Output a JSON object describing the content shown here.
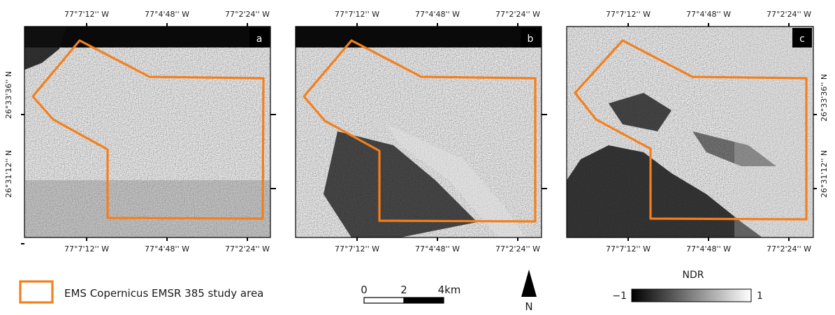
{
  "panels": [
    {
      "label": "a",
      "style": "sar-1"
    },
    {
      "label": "b",
      "style": "sar-2"
    },
    {
      "label": "c",
      "style": "ndr"
    }
  ],
  "axes": {
    "top_ticks": [
      "77°7'12'' W",
      "77°4'48'' W",
      "77°2'24'' W"
    ],
    "bottom_ticks": [
      "77°7'12'' W",
      "77°4'48'' W",
      "77°2'24'' W"
    ],
    "lat_ticks": [
      "26°33'36'' N",
      "26°31'12'' N"
    ]
  },
  "legend": {
    "study_area_label": "EMS Copernicus EMSR 385 study area",
    "outline_color": "#f47f1c"
  },
  "scalebar": {
    "labels": [
      "0",
      "2",
      "4km"
    ]
  },
  "north_arrow": {
    "label": "N"
  },
  "ndr_colorbar": {
    "title": "NDR",
    "min_label": "−1",
    "max_label": "1"
  }
}
